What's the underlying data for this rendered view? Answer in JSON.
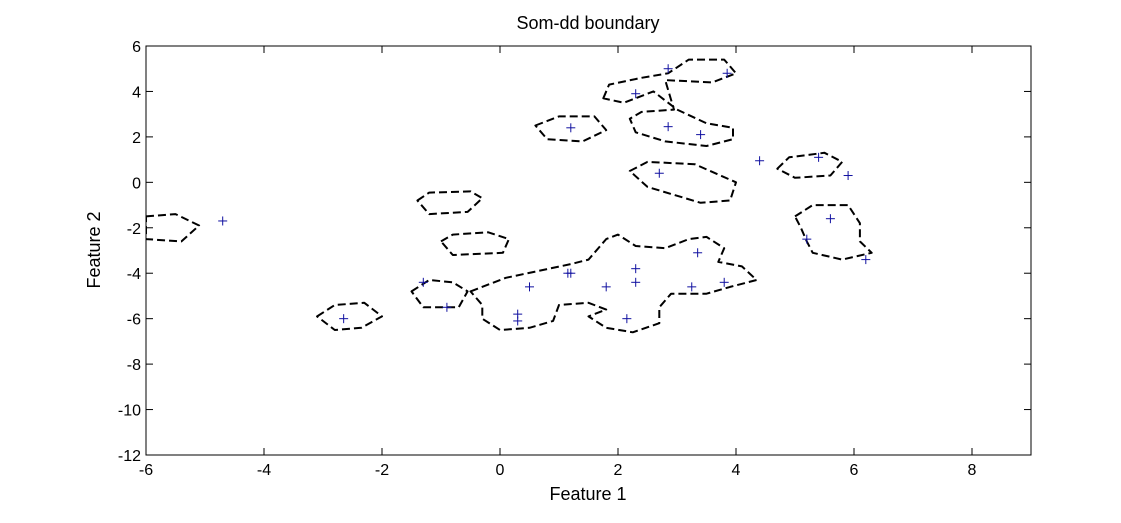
{
  "chart_data": {
    "type": "scatter",
    "title": "Som-dd boundary",
    "xlabel": "Feature 1",
    "ylabel": "Feature 2",
    "xlim": [
      -6,
      9
    ],
    "ylim": [
      -12,
      6
    ],
    "xticks": [
      -6,
      -4,
      -2,
      0,
      2,
      4,
      6,
      8
    ],
    "yticks": [
      6,
      4,
      2,
      0,
      -2,
      -4,
      -6,
      -8,
      -10,
      -12
    ],
    "grid": false,
    "marker_color": "#1010a0",
    "boundary_color": "#000000",
    "series": [
      {
        "marker": "+",
        "points": [
          [
            -4.7,
            -1.7
          ],
          [
            -2.65,
            -6.0
          ],
          [
            -1.3,
            -4.4
          ],
          [
            -0.9,
            -5.5
          ],
          [
            0.3,
            -5.8
          ],
          [
            0.3,
            -6.1
          ],
          [
            0.5,
            -4.6
          ],
          [
            1.15,
            -4.0
          ],
          [
            1.2,
            -4.0
          ],
          [
            1.2,
            2.4
          ],
          [
            1.8,
            -4.6
          ],
          [
            2.15,
            -6.0
          ],
          [
            2.3,
            3.9
          ],
          [
            2.3,
            -3.8
          ],
          [
            2.3,
            -4.4
          ],
          [
            2.7,
            0.4
          ],
          [
            2.85,
            2.45
          ],
          [
            2.85,
            5.0
          ],
          [
            3.35,
            -3.1
          ],
          [
            3.25,
            -4.6
          ],
          [
            3.4,
            2.1
          ],
          [
            3.8,
            -4.4
          ],
          [
            3.85,
            4.8
          ],
          [
            4.4,
            0.95
          ],
          [
            5.2,
            -2.5
          ],
          [
            5.4,
            1.1
          ],
          [
            5.6,
            -1.6
          ],
          [
            5.9,
            0.3
          ],
          [
            6.2,
            -3.4
          ]
        ]
      }
    ],
    "boundaries": [
      [
        [
          -6.0,
          -1.5
        ],
        [
          -5.5,
          -1.4
        ],
        [
          -5.1,
          -1.9
        ],
        [
          -5.4,
          -2.6
        ],
        [
          -6.0,
          -2.5
        ]
      ],
      [
        [
          -3.1,
          -5.9
        ],
        [
          -2.8,
          -5.4
        ],
        [
          -2.3,
          -5.3
        ],
        [
          -2.0,
          -5.9
        ],
        [
          -2.35,
          -6.4
        ],
        [
          -2.8,
          -6.5
        ]
      ],
      [
        [
          -1.5,
          -4.8
        ],
        [
          -1.2,
          -4.3
        ],
        [
          -0.8,
          -4.4
        ],
        [
          -0.55,
          -4.8
        ],
        [
          -0.7,
          -5.5
        ],
        [
          -1.3,
          -5.5
        ]
      ],
      [
        [
          -1.4,
          -0.8
        ],
        [
          -1.2,
          -0.45
        ],
        [
          -0.5,
          -0.4
        ],
        [
          -0.3,
          -0.7
        ],
        [
          -0.55,
          -1.3
        ],
        [
          -1.2,
          -1.4
        ]
      ],
      [
        [
          -1.0,
          -2.6
        ],
        [
          -0.8,
          -2.3
        ],
        [
          -0.2,
          -2.2
        ],
        [
          0.15,
          -2.5
        ],
        [
          0.05,
          -3.1
        ],
        [
          -0.8,
          -3.2
        ]
      ],
      [
        [
          -0.5,
          -4.8
        ],
        [
          0.1,
          -4.2
        ],
        [
          1.2,
          -3.6
        ],
        [
          1.5,
          -3.4
        ],
        [
          1.8,
          -2.5
        ],
        [
          2.0,
          -2.3
        ],
        [
          2.3,
          -2.8
        ],
        [
          2.8,
          -2.9
        ],
        [
          3.2,
          -2.5
        ],
        [
          3.5,
          -2.4
        ],
        [
          3.8,
          -2.9
        ],
        [
          3.7,
          -3.5
        ],
        [
          4.1,
          -3.7
        ],
        [
          4.35,
          -4.3
        ],
        [
          3.9,
          -4.6
        ],
        [
          3.5,
          -4.9
        ],
        [
          2.9,
          -4.9
        ],
        [
          2.7,
          -5.5
        ],
        [
          2.7,
          -6.2
        ],
        [
          2.25,
          -6.6
        ],
        [
          1.8,
          -6.4
        ],
        [
          1.5,
          -5.9
        ],
        [
          1.8,
          -5.6
        ],
        [
          1.5,
          -5.3
        ],
        [
          1.0,
          -5.4
        ],
        [
          0.9,
          -6.1
        ],
        [
          0.5,
          -6.4
        ],
        [
          0.0,
          -6.5
        ],
        [
          -0.3,
          -6.0
        ],
        [
          -0.3,
          -5.4
        ]
      ],
      [
        [
          0.6,
          2.5
        ],
        [
          1.0,
          2.9
        ],
        [
          1.6,
          2.9
        ],
        [
          1.8,
          2.3
        ],
        [
          1.4,
          1.8
        ],
        [
          0.8,
          1.9
        ]
      ],
      [
        [
          1.75,
          3.7
        ],
        [
          1.85,
          4.3
        ],
        [
          2.4,
          4.6
        ],
        [
          2.85,
          4.8
        ],
        [
          3.2,
          5.4
        ],
        [
          3.8,
          5.4
        ],
        [
          4.0,
          4.8
        ],
        [
          3.6,
          4.4
        ],
        [
          2.8,
          4.5
        ],
        [
          2.95,
          3.2
        ],
        [
          2.4,
          3.1
        ],
        [
          2.2,
          2.8
        ],
        [
          2.3,
          2.2
        ],
        [
          2.8,
          1.8
        ],
        [
          3.5,
          1.6
        ],
        [
          3.95,
          1.9
        ],
        [
          3.95,
          2.4
        ],
        [
          3.5,
          2.6
        ],
        [
          3.0,
          3.2
        ],
        [
          2.6,
          4.0
        ],
        [
          2.1,
          3.5
        ]
      ],
      [
        [
          2.2,
          0.5
        ],
        [
          2.5,
          0.9
        ],
        [
          3.3,
          0.8
        ],
        [
          4.0,
          0.0
        ],
        [
          3.9,
          -0.8
        ],
        [
          3.4,
          -0.9
        ],
        [
          2.5,
          -0.2
        ]
      ],
      [
        [
          4.7,
          0.6
        ],
        [
          4.9,
          1.1
        ],
        [
          5.5,
          1.3
        ],
        [
          5.8,
          0.9
        ],
        [
          5.6,
          0.3
        ],
        [
          5.0,
          0.2
        ]
      ],
      [
        [
          5.0,
          -1.5
        ],
        [
          5.3,
          -1.0
        ],
        [
          5.9,
          -1.0
        ],
        [
          6.1,
          -1.8
        ],
        [
          6.1,
          -2.6
        ],
        [
          6.3,
          -3.1
        ],
        [
          5.8,
          -3.4
        ],
        [
          5.3,
          -3.1
        ],
        [
          5.2,
          -2.6
        ],
        [
          5.1,
          -2.0
        ]
      ]
    ]
  }
}
